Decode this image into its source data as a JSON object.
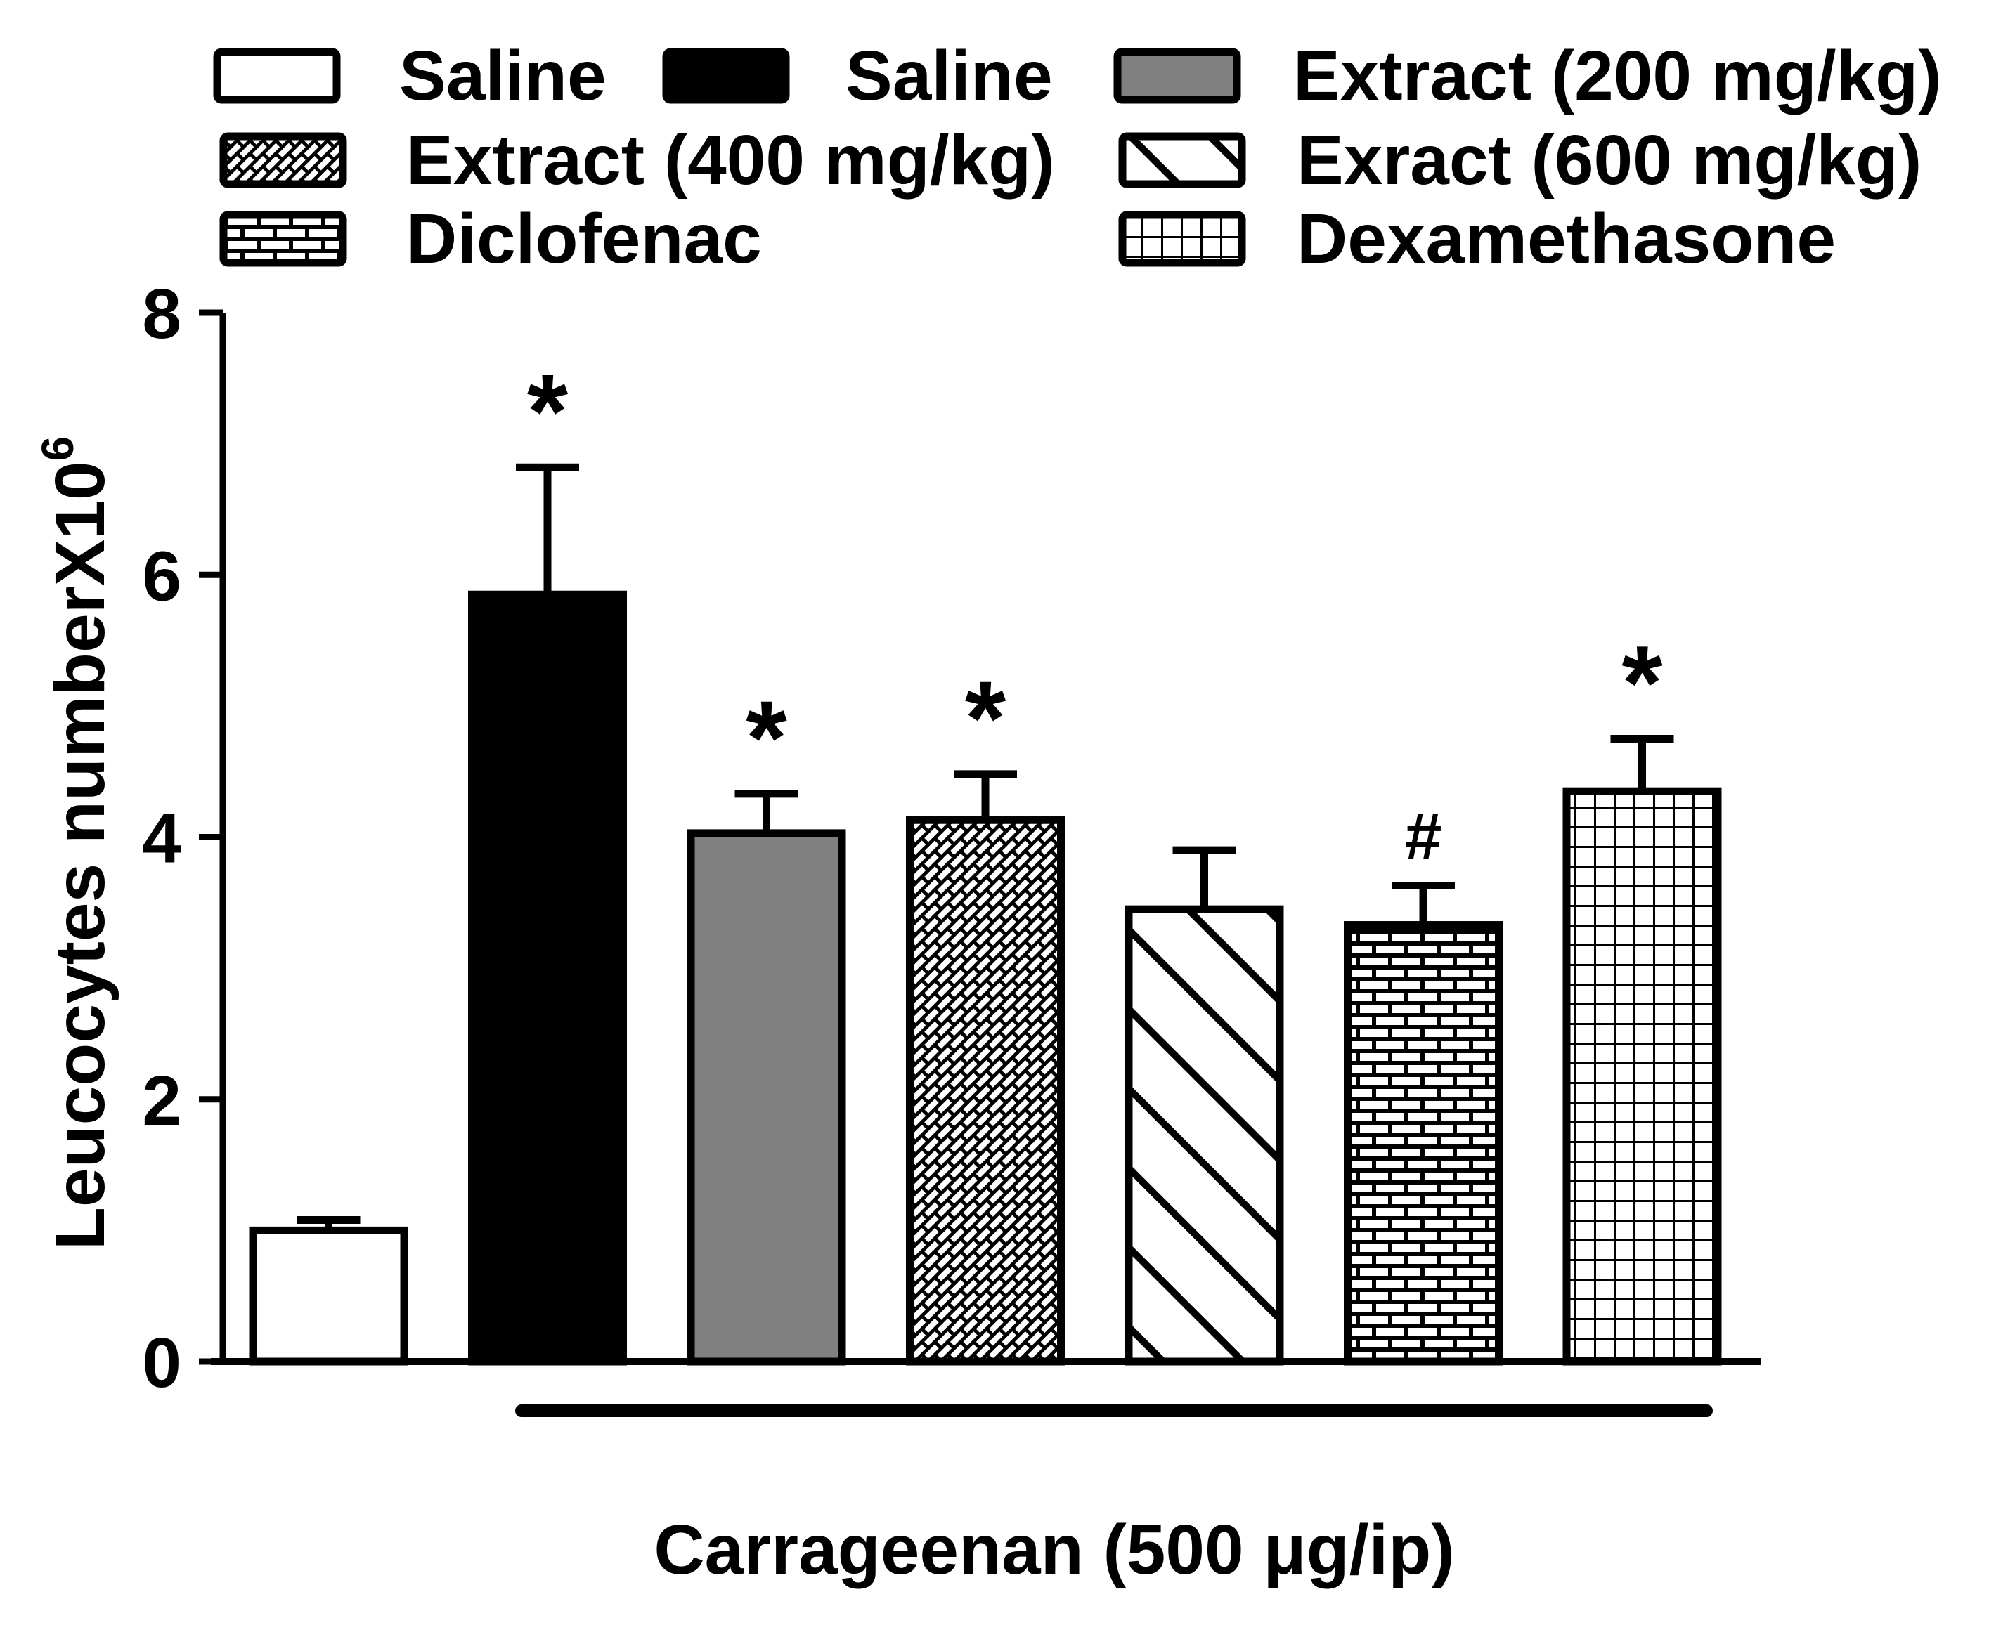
{
  "chart_data": {
    "type": "bar",
    "ylabel": "Leucocytes numberX10",
    "ylabel_sup": "6",
    "xlabel": "Carrageenan (500 μg/ip)",
    "ylim": [
      0,
      8
    ],
    "yticks": [
      0,
      2,
      4,
      6,
      8
    ],
    "bars": [
      {
        "legend": "Saline",
        "value": 1.0,
        "error": 0.08,
        "mark": "",
        "pattern": "white"
      },
      {
        "legend": "Saline",
        "value": 5.85,
        "error": 0.97,
        "mark": "*",
        "pattern": "black"
      },
      {
        "legend": "Extract (200 mg/kg)",
        "value": 4.03,
        "error": 0.3,
        "mark": "*",
        "pattern": "gray"
      },
      {
        "legend": "Extract (400 mg/kg)",
        "value": 4.13,
        "error": 0.35,
        "mark": "*",
        "pattern": "bricks"
      },
      {
        "legend": "Exract (600 mg/kg)",
        "value": 3.45,
        "error": 0.45,
        "mark": "",
        "pattern": "diagonal"
      },
      {
        "legend": "Diclofenac",
        "value": 3.33,
        "error": 0.3,
        "mark": "#",
        "pattern": "wall"
      },
      {
        "legend": "Dexamethasone",
        "value": 4.35,
        "error": 0.4,
        "mark": "*",
        "pattern": "grid"
      }
    ],
    "legend_rows": [
      [
        0,
        1,
        2
      ],
      [
        3,
        4
      ],
      [
        5,
        6
      ]
    ],
    "colors": {
      "black": "#000000",
      "gray": "#808080",
      "white": "#ffffff"
    }
  }
}
